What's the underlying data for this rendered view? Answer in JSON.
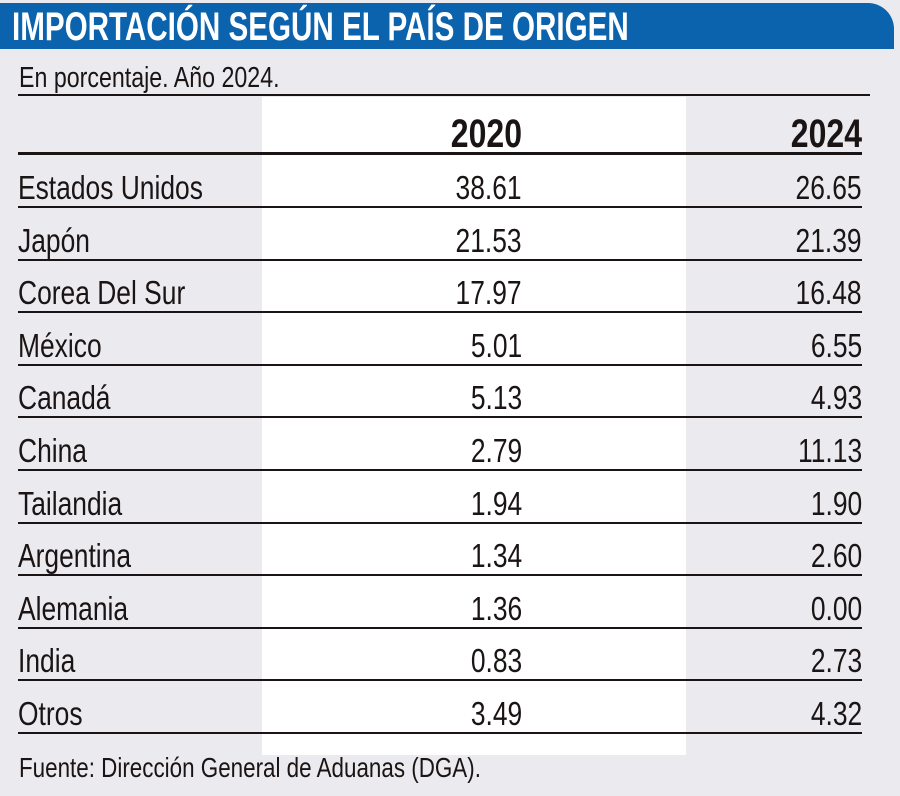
{
  "title": "IMPORTACIÓN SEGÚN EL PAÍS DE ORIGEN",
  "subtitle": "En porcentaje.   Año 2024.",
  "source": "Fuente: Dirección General de Aduanas (DGA).",
  "colors": {
    "title_bar": "#0b62ad",
    "background": "#ebebef",
    "highlight_column": "#ffffff"
  },
  "chart_data": {
    "type": "table",
    "title": "IMPORTACIÓN SEGÚN EL PAÍS DE ORIGEN",
    "columns": [
      "",
      "2020",
      "2024"
    ],
    "rows": [
      {
        "country": "Estados Unidos",
        "v2020": "38.61",
        "v2024": "26.65"
      },
      {
        "country": "Japón",
        "v2020": "21.53",
        "v2024": "21.39"
      },
      {
        "country": "Corea Del Sur",
        "v2020": "17.97",
        "v2024": "16.48"
      },
      {
        "country": "México",
        "v2020": "5.01",
        "v2024": "6.55"
      },
      {
        "country": "Canadá",
        "v2020": "5.13",
        "v2024": "4.93"
      },
      {
        "country": "China",
        "v2020": "2.79",
        "v2024": "11.13"
      },
      {
        "country": "Tailandia",
        "v2020": "1.94",
        "v2024": "1.90"
      },
      {
        "country": "Argentina",
        "v2020": "1.34",
        "v2024": "2.60"
      },
      {
        "country": "Alemania",
        "v2020": "1.36",
        "v2024": "0.00"
      },
      {
        "country": "India",
        "v2020": "0.83",
        "v2024": "2.73"
      },
      {
        "country": "Otros",
        "v2020": "3.49",
        "v2024": "4.32"
      }
    ]
  }
}
